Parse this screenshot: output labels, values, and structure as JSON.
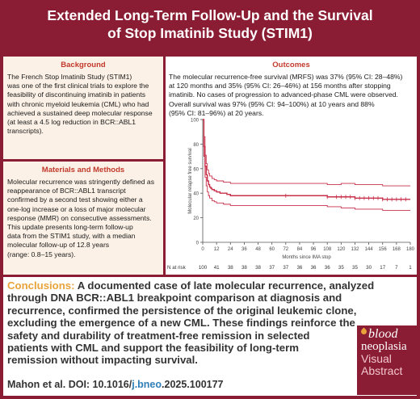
{
  "title": {
    "line1": "Extended Long-Term Follow-Up and the Survival",
    "line2": "of Stop Imatinib Study (STIM1)"
  },
  "background": {
    "heading": "Background",
    "lines": [
      "The French Stop Imatinib Study (STIM1)",
      "was one of the first clinical trials to explore the",
      "feasibility of discontinuing imatinib in patients",
      "with chronic myeloid leukemia (CML) who had",
      "achieved a sustained deep molecular response",
      "(at least a 4.5 log reduction in BCR::ABL1",
      "transcripts)."
    ]
  },
  "methods": {
    "heading": "Materials and Methods",
    "lines": [
      "Molecular recurrence was stringently defined as",
      "reappearance of BCR::ABL1 transcript",
      "confirmed by a second test showing either a",
      "one-log increase or a loss of major molecular",
      "response (MMR) on consecutive assessments.",
      "This update presents long-term follow-up",
      "data from the STIM1 study, with a median",
      "molecular follow-up of 12.8 years",
      "(range: 0.8–15 years)."
    ]
  },
  "outcomes": {
    "heading": "Outcomes",
    "lines": [
      "The molecular recurrence-free survival (MRFS) was 37% (95% CI: 28–48%)",
      "at 120 months and 35% (95% CI: 26–46%) at 156 months after stopping",
      "imatinib. No cases of progression to advanced-phase CML were observed.",
      "Overall survival was 97% (95% CI: 94–100%) at 10 years and 88%",
      "(95% CI: 81–96%) at 20 years."
    ]
  },
  "chart_data": {
    "type": "line",
    "title": "",
    "xlabel": "Months since IMA stop",
    "ylabel": "Molecular relapse free survival",
    "xlim": [
      0,
      180
    ],
    "ylim": [
      0,
      100
    ],
    "x_ticks": [
      0,
      12,
      24,
      36,
      48,
      60,
      72,
      84,
      96,
      108,
      120,
      132,
      144,
      156,
      168,
      180
    ],
    "y_ticks": [
      0,
      20,
      40,
      60,
      80,
      100
    ],
    "grid": false,
    "series": [
      {
        "role": "estimate",
        "color": "#c8304a",
        "x": [
          0,
          1,
          2,
          3,
          4,
          5,
          6,
          7,
          8,
          10,
          12,
          15,
          18,
          21,
          24,
          36,
          60,
          84,
          108,
          120,
          132,
          156,
          165,
          180
        ],
        "y": [
          100,
          78,
          62,
          55,
          50,
          47,
          45,
          44,
          43,
          42,
          41,
          40,
          40,
          39,
          38,
          38,
          38,
          38,
          37,
          37,
          36,
          35,
          35,
          35
        ]
      },
      {
        "role": "ci-upper",
        "color": "#c8304a",
        "x": [
          0,
          1,
          2,
          3,
          4,
          5,
          6,
          8,
          10,
          12,
          18,
          24,
          36,
          60,
          84,
          108,
          120,
          132,
          156,
          180
        ],
        "y": [
          100,
          86,
          71,
          64,
          59,
          56,
          54,
          52,
          51,
          50,
          49,
          48,
          48,
          48,
          48,
          47,
          48,
          47,
          46,
          46
        ]
      },
      {
        "role": "ci-lower",
        "color": "#c8304a",
        "x": [
          0,
          1,
          2,
          3,
          4,
          5,
          6,
          8,
          10,
          12,
          18,
          24,
          36,
          60,
          84,
          108,
          120,
          132,
          156,
          180
        ],
        "y": [
          100,
          70,
          53,
          46,
          41,
          38,
          36,
          34,
          33,
          32,
          31,
          30,
          30,
          30,
          30,
          29,
          28,
          27,
          26,
          26
        ]
      }
    ],
    "censor_x": [
      72,
      108,
      116,
      120,
      124,
      128,
      132,
      136,
      140,
      144,
      148,
      152,
      156,
      160,
      164,
      168,
      172,
      176
    ],
    "number_at_risk": {
      "label": "N at risk",
      "x": [
        0,
        12,
        24,
        36,
        48,
        60,
        72,
        84,
        96,
        108,
        120,
        132,
        144,
        156,
        168,
        180
      ],
      "values": [
        "100",
        "41",
        "38",
        "38",
        "38",
        "37",
        "37",
        "36",
        "36",
        "36",
        "35",
        "35",
        "30",
        "17",
        "7",
        "1"
      ]
    }
  },
  "conclusions": {
    "label": "Conclusions:",
    "lines": [
      "A documented case of late molecular recurrence, analyzed",
      "through DNA BCR::ABL1 breakpoint comparison at diagnosis and",
      "recurrence, confirmed the persistence of the original leukemic clone,",
      "excluding the emergence of a new CML. These findings reinforce the",
      "safety and durability of treatment-free remission in selected",
      "patients with CML and support the feasibility of long-term",
      "remission without impacting survival."
    ]
  },
  "citation": {
    "prefix": "Mahon et al. DOI: 10.1016/",
    "link": "j.bneo",
    "suffix": ".2025.100177"
  },
  "badge": {
    "line1": "blood",
    "line2": "neoplasia",
    "line3": "Visual",
    "line4": "Abstract"
  },
  "colors": {
    "frame": "#8a1c33",
    "section_heading": "#c2392b",
    "left_panel_bg": "#fbf1e6",
    "curve": "#c8304a",
    "conclusion_label": "#e8a33a",
    "doi_link": "#2f7fb8"
  }
}
